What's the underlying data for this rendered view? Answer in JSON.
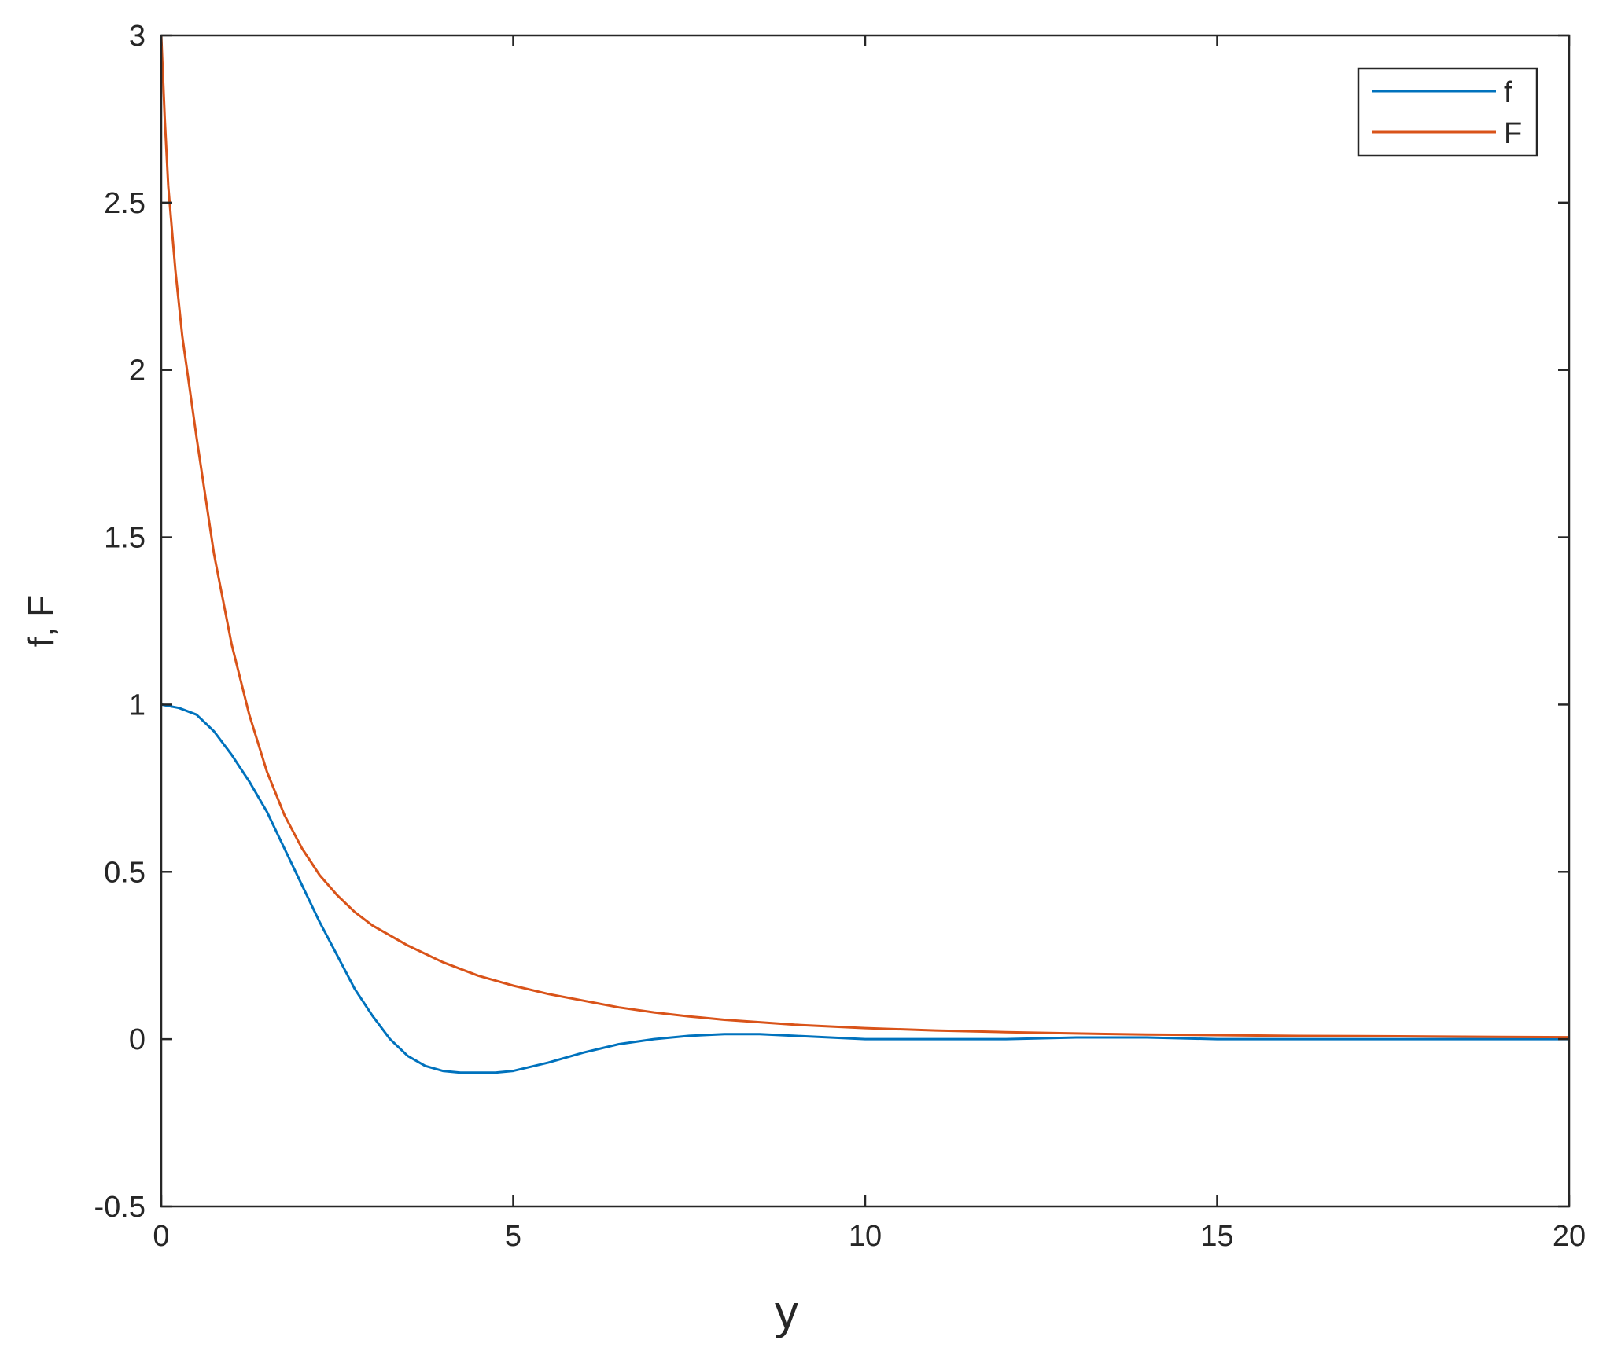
{
  "chart_data": {
    "type": "line",
    "xlabel": "y",
    "ylabel": "f, F",
    "xlim": [
      0,
      20
    ],
    "ylim": [
      -0.5,
      3
    ],
    "xticks": [
      "0",
      "5",
      "10",
      "15",
      "20"
    ],
    "yticks": [
      "-0.5",
      "0",
      "0.5",
      "1",
      "1.5",
      "2",
      "2.5",
      "3"
    ],
    "grid": false,
    "legend_position": "top-right",
    "series": [
      {
        "name": "f",
        "color": "#0072BD",
        "x": [
          0,
          0.25,
          0.5,
          0.75,
          1,
          1.25,
          1.5,
          1.75,
          2,
          2.25,
          2.5,
          2.75,
          3,
          3.25,
          3.5,
          3.75,
          4,
          4.25,
          4.5,
          4.75,
          5,
          5.5,
          6,
          6.5,
          7,
          7.5,
          8,
          8.5,
          9,
          10,
          11,
          12,
          13,
          14,
          15,
          16,
          17,
          18,
          19,
          20
        ],
        "y": [
          1.0,
          0.99,
          0.97,
          0.92,
          0.85,
          0.77,
          0.68,
          0.57,
          0.46,
          0.35,
          0.25,
          0.15,
          0.07,
          0.0,
          -0.05,
          -0.08,
          -0.095,
          -0.1,
          -0.1,
          -0.1,
          -0.095,
          -0.07,
          -0.04,
          -0.015,
          0.0,
          0.01,
          0.015,
          0.015,
          0.01,
          0.0,
          0.0,
          0.0,
          0.005,
          0.005,
          0.0,
          0.0,
          0.0,
          0.0,
          0.0,
          0.0
        ]
      },
      {
        "name": "F",
        "color": "#D95319",
        "x": [
          0,
          0.05,
          0.1,
          0.2,
          0.3,
          0.5,
          0.75,
          1,
          1.25,
          1.5,
          1.75,
          2,
          2.25,
          2.5,
          2.75,
          3,
          3.5,
          4,
          4.5,
          5,
          5.5,
          6,
          6.5,
          7,
          7.5,
          8,
          9,
          10,
          11,
          12,
          13,
          14,
          15,
          16,
          17,
          18,
          19,
          20
        ],
        "y": [
          3.0,
          2.75,
          2.55,
          2.3,
          2.1,
          1.8,
          1.45,
          1.18,
          0.97,
          0.8,
          0.67,
          0.57,
          0.49,
          0.43,
          0.38,
          0.34,
          0.28,
          0.23,
          0.19,
          0.16,
          0.135,
          0.115,
          0.095,
          0.08,
          0.068,
          0.058,
          0.043,
          0.033,
          0.026,
          0.021,
          0.017,
          0.014,
          0.012,
          0.01,
          0.009,
          0.008,
          0.007,
          0.006
        ]
      }
    ]
  }
}
